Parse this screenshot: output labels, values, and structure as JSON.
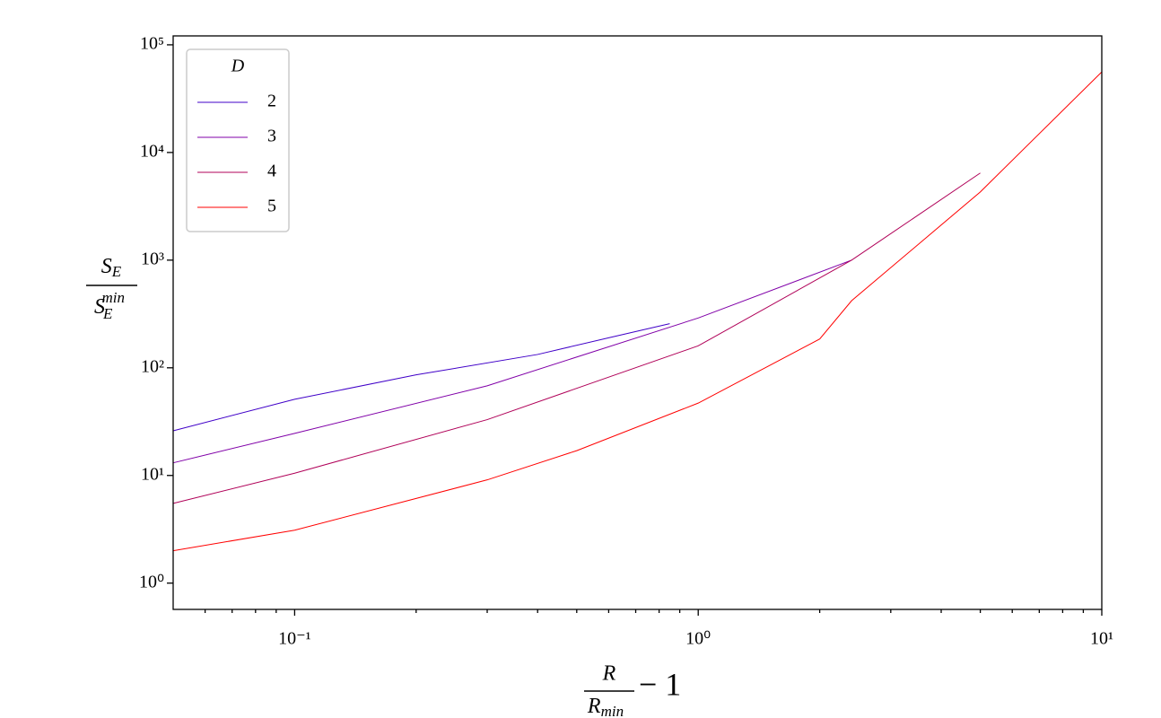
{
  "chart_data": {
    "type": "line",
    "xlabel": {
      "numerator": [
        "R"
      ],
      "denominator": [
        "R",
        "min"
      ],
      "suffix": "− 1"
    },
    "ylabel": {
      "numerator": [
        "S",
        "E"
      ],
      "denominator": [
        "S",
        "E",
        "min"
      ]
    },
    "log_x": true,
    "log_y": true,
    "xlim": [
      0.05,
      10
    ],
    "ylim": [
      0.57,
      121000
    ],
    "xticks": [
      {
        "value": 0.1,
        "label": "10⁻¹"
      },
      {
        "value": 1,
        "label": "10⁰"
      },
      {
        "value": 10,
        "label": "10¹"
      }
    ],
    "xminorticks": [
      0.06,
      0.07,
      0.08,
      0.09,
      0.2,
      0.3,
      0.4,
      0.5,
      0.6,
      0.7,
      0.8,
      0.9,
      2,
      3,
      4,
      5,
      6,
      7,
      8,
      9
    ],
    "yticks": [
      {
        "value": 1,
        "label": "10⁰"
      },
      {
        "value": 10,
        "label": "10¹"
      },
      {
        "value": 100,
        "label": "10²"
      },
      {
        "value": 1000,
        "label": "10³"
      },
      {
        "value": 10000,
        "label": "10⁴"
      },
      {
        "value": 100000,
        "label": "10⁵"
      }
    ],
    "legend_title": "D",
    "legend_position": "upper left",
    "series": [
      {
        "name": "2",
        "color": "#4000c8",
        "x": [
          0.05,
          0.1,
          0.2,
          0.4,
          0.6,
          0.85
        ],
        "values": [
          26,
          51,
          86,
          133,
          190,
          257
        ]
      },
      {
        "name": "3",
        "color": "#8000a8",
        "x": [
          0.05,
          0.1,
          0.3,
          1,
          2.4
        ],
        "values": [
          13.1,
          24.6,
          68,
          290,
          1000
        ]
      },
      {
        "name": "4",
        "color": "#b00058",
        "x": [
          0.05,
          0.1,
          0.3,
          1,
          2.4,
          5
        ],
        "values": [
          5.5,
          10.5,
          33,
          160,
          1000,
          6450
        ]
      },
      {
        "name": "5",
        "color": "#ff0000",
        "x": [
          0.05,
          0.1,
          0.3,
          0.5,
          1,
          2,
          2.4,
          5,
          10
        ],
        "values": [
          2.0,
          3.1,
          9.1,
          17,
          47,
          185,
          420,
          4300,
          56000
        ]
      }
    ]
  }
}
